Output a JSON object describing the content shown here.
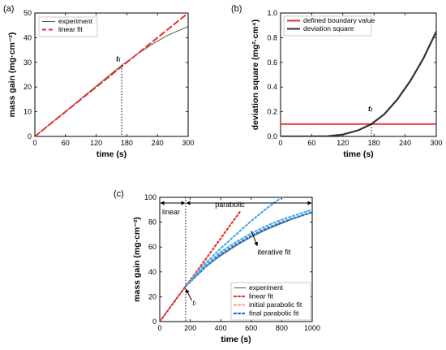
{
  "chart_data": [
    {
      "panel_label": "(a)",
      "type": "line",
      "xlabel": "time (s)",
      "ylabel": "mass gain (mg·cm⁻²)",
      "xlim": [
        0,
        300
      ],
      "ylim": [
        0,
        50
      ],
      "xticks": [
        0,
        60,
        120,
        180,
        240,
        300
      ],
      "yticks": [
        0,
        10,
        20,
        30,
        40,
        50
      ],
      "legend_position": "top-left",
      "series": [
        {
          "name": "experiment",
          "color": "#555555",
          "style": "solid",
          "x": [
            0,
            30,
            60,
            90,
            120,
            150,
            170,
            200,
            230,
            260,
            300
          ],
          "y": [
            0,
            5.1,
            10.2,
            15.3,
            20.4,
            25.5,
            28.8,
            33.3,
            37.4,
            41.0,
            44.5
          ]
        },
        {
          "name": "linear fit",
          "color": "#e8322c",
          "style": "dashed",
          "x": [
            0,
            300
          ],
          "y": [
            0,
            50
          ]
        }
      ],
      "annotations": [
        {
          "label": "tₗ",
          "x": 170,
          "y": 28.8
        }
      ]
    },
    {
      "panel_label": "(b)",
      "type": "line",
      "xlabel": "time (s)",
      "ylabel": "deviation square (mg²·cm⁴)",
      "xlim": [
        0,
        300
      ],
      "ylim": [
        0,
        1.0
      ],
      "xticks": [
        0,
        60,
        120,
        180,
        240,
        300
      ],
      "yticks": [
        0.0,
        0.2,
        0.4,
        0.6,
        0.8,
        1.0
      ],
      "legend_position": "top-left",
      "series": [
        {
          "name": "defined boundary value",
          "color": "#e8322c",
          "style": "solid",
          "x": [
            0,
            300
          ],
          "y": [
            0.1,
            0.1
          ]
        },
        {
          "name": "deviation square",
          "color": "#333333",
          "style": "solid",
          "x": [
            0,
            60,
            90,
            120,
            150,
            175,
            200,
            225,
            250,
            275,
            300
          ],
          "y": [
            0,
            0,
            0.002,
            0.015,
            0.05,
            0.1,
            0.18,
            0.3,
            0.45,
            0.63,
            0.85
          ]
        }
      ],
      "annotations": [
        {
          "label": "tₗ",
          "x": 175,
          "y": 0.1
        }
      ]
    },
    {
      "panel_label": "(c)",
      "type": "line",
      "xlabel": "time (s)",
      "ylabel": "mass gain (mg·cm⁻²)",
      "xlim": [
        0,
        1000
      ],
      "ylim": [
        0,
        100
      ],
      "xticks": [
        0,
        200,
        400,
        600,
        800,
        1000
      ],
      "yticks": [
        0,
        20,
        40,
        60,
        80,
        100
      ],
      "legend_position": "bottom-right",
      "series": [
        {
          "name": "experiment",
          "color": "#555555",
          "style": "solid",
          "x": [
            0,
            100,
            170,
            250,
            300,
            400,
            500,
            600,
            700,
            800,
            900,
            1000
          ],
          "y": [
            0,
            17,
            28.5,
            38,
            44,
            53,
            61,
            68,
            74,
            79,
            84,
            88
          ]
        },
        {
          "name": "linear fit",
          "color": "#e8322c",
          "style": "dotted",
          "x": [
            0,
            170,
            300,
            400,
            500,
            530
          ],
          "y": [
            0,
            28.5,
            50,
            67,
            84,
            89
          ]
        },
        {
          "name": "initial parabolic fit",
          "color": "#f0a0a0",
          "style": "dotted",
          "x": [
            170,
            220,
            260,
            300
          ],
          "y": [
            28.5,
            36,
            42,
            46
          ]
        },
        {
          "name": "final parabolic fit",
          "color": "#1a6fd0",
          "style": "dotted",
          "x": [
            170,
            250,
            300,
            400,
            500,
            600,
            700,
            800,
            900,
            1000
          ],
          "y": [
            28.5,
            38,
            44,
            54,
            62,
            69,
            75,
            80,
            84,
            88
          ]
        },
        {
          "name": "iterative fit 1",
          "color": "#4aa8e0",
          "style": "dotted",
          "x": [
            170,
            250,
            300,
            400,
            500,
            600,
            700,
            800
          ],
          "y": [
            28.5,
            40,
            47,
            59,
            70,
            81,
            91,
            100
          ]
        },
        {
          "name": "iterative fit 2",
          "color": "#4aa8e0",
          "style": "dotted",
          "x": [
            170,
            250,
            300,
            400,
            500,
            600,
            700,
            800,
            900,
            1000
          ],
          "y": [
            28.5,
            39,
            45,
            56,
            64,
            71,
            77,
            82,
            86,
            90
          ]
        }
      ],
      "annotations": [
        {
          "label": "linear"
        },
        {
          "label": "parabolic"
        },
        {
          "label": "iterative fit"
        },
        {
          "label": "tₗ"
        }
      ],
      "legend_entries": [
        "experiment",
        "linear fit",
        "initial parabolic fit",
        "final parabolic fit"
      ]
    }
  ]
}
